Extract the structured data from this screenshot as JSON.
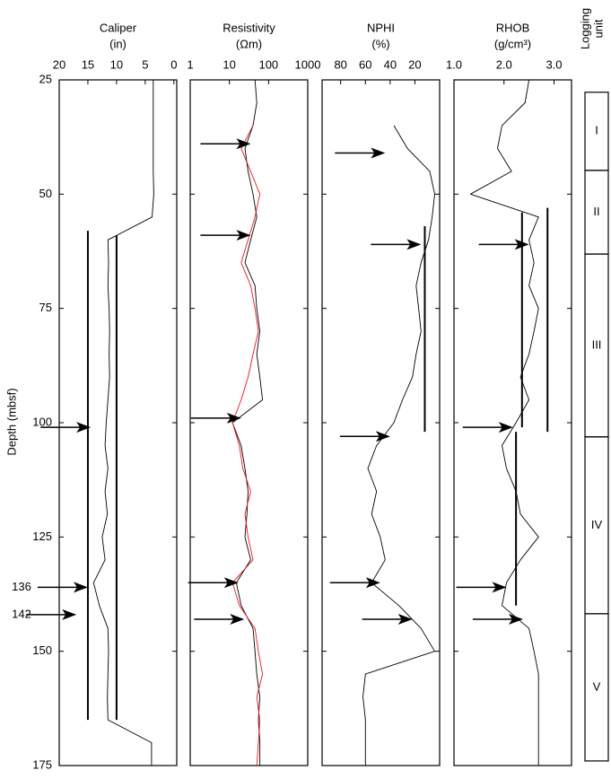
{
  "depth_axis": {
    "label": "Depth (mbsf)",
    "lim": [
      25,
      175
    ],
    "ticks": [
      25,
      50,
      75,
      100,
      125,
      150,
      175
    ]
  },
  "depths": [
    25,
    30,
    35,
    40,
    45,
    50,
    55,
    60,
    65,
    70,
    75,
    80,
    85,
    90,
    95,
    100,
    105,
    110,
    115,
    120,
    125,
    130,
    135,
    140,
    145,
    150,
    155,
    160,
    165,
    170,
    175
  ],
  "depth_labels": [
    136,
    142
  ],
  "units_title": [
    "Logging",
    "unit"
  ],
  "units": [
    {
      "label": "I",
      "top": 27.7,
      "bottom": 44.8
    },
    {
      "label": "II",
      "top": 44.8,
      "bottom": 63.1
    },
    {
      "label": "III",
      "top": 63.1,
      "bottom": 103.1
    },
    {
      "label": "IV",
      "top": 103.1,
      "bottom": 141.8
    },
    {
      "label": "V",
      "top": 141.8,
      "bottom": 174
    }
  ],
  "chart_data": [
    {
      "type": "line",
      "title": "Caliper",
      "unit": "(in)",
      "xlim": [
        20,
        -0.5
      ],
      "xticks": [
        20,
        15,
        10,
        5,
        0
      ],
      "series": [
        {
          "color": "#000000",
          "values": [
            3.6,
            3.6,
            3.6,
            3.6,
            3.6,
            3.5,
            3.8,
            11.5,
            11.4,
            11.5,
            11.3,
            11.2,
            11.3,
            11.2,
            11.5,
            11.8,
            12,
            11.5,
            12,
            11.6,
            12.5,
            12,
            14,
            13,
            11.5,
            11.4,
            11.5,
            11.6,
            11.5,
            3.9,
            3.9
          ]
        }
      ],
      "reference_lines": [
        {
          "value": 15,
          "from": 58,
          "to": 165
        },
        {
          "value": 10,
          "from": 59,
          "to": 165
        }
      ],
      "arrows": [
        {
          "depth": 101,
          "value": 14.5
        },
        {
          "depth": 136,
          "value": 15
        },
        {
          "depth": 142,
          "value": 17
        }
      ]
    },
    {
      "type": "line",
      "title": "Resistivity",
      "unit": "(Ωm)",
      "log": true,
      "xlim": [
        1,
        1000
      ],
      "xticks": [
        1,
        10,
        100,
        1000
      ],
      "series": [
        {
          "color": "#000000",
          "values": [
            45,
            50,
            40,
            25,
            30,
            40,
            50,
            35,
            25,
            45,
            50,
            60,
            50,
            60,
            70,
            12,
            20,
            25,
            30,
            28,
            25,
            35,
            15,
            20,
            40,
            45,
            50,
            60,
            55,
            60,
            60
          ]
        },
        {
          "color": "#e8141c",
          "values": [
            null,
            null,
            40,
            20,
            35,
            60,
            45,
            30,
            20,
            35,
            45,
            55,
            40,
            30,
            20,
            12,
            18,
            22,
            35,
            25,
            30,
            40,
            12,
            18,
            45,
            55,
            70,
            50,
            60,
            55,
            50
          ]
        }
      ],
      "reference_lines": [],
      "arrows": [
        {
          "depth": 39,
          "value": 35
        },
        {
          "depth": 59,
          "value": 35
        },
        {
          "depth": 99,
          "value": 20
        },
        {
          "depth": 135,
          "value": 17
        },
        {
          "depth": 143,
          "value": 24
        }
      ]
    },
    {
      "type": "line",
      "title": "NPHI",
      "unit": "(%)",
      "xlim": [
        95,
        0
      ],
      "xticks": [
        80,
        60,
        40,
        20
      ],
      "series": [
        {
          "color": "#000000",
          "values": [
            null,
            null,
            37,
            26,
            8,
            4,
            6,
            9,
            15,
            19,
            17,
            15,
            19,
            22,
            30,
            37,
            51,
            58,
            51,
            55,
            48,
            44,
            55,
            33,
            15,
            4,
            60,
            62,
            60,
            60,
            60
          ]
        }
      ],
      "reference_lines": [
        {
          "value": 12,
          "from": 57,
          "to": 102
        }
      ],
      "arrows": [
        {
          "depth": 41,
          "value": 44
        },
        {
          "depth": 61,
          "value": 15
        },
        {
          "depth": 103,
          "value": 40
        },
        {
          "depth": 135,
          "value": 48
        },
        {
          "depth": 143,
          "value": 22
        }
      ]
    },
    {
      "type": "line",
      "title": "RHOB",
      "unit": "(g/cm³)",
      "xlim": [
        1.0,
        3.35
      ],
      "xticks": [
        {
          "value": 1,
          "label": "1.0"
        },
        {
          "value": 2,
          "label": "2.0"
        },
        {
          "value": 3,
          "label": "3.0"
        }
      ],
      "series": [
        {
          "color": "#000000",
          "values": [
            2.5,
            2.42,
            1.96,
            1.87,
            2.15,
            1.33,
            2.69,
            2.5,
            2.6,
            2.5,
            2.69,
            2.6,
            2.5,
            2.33,
            2.5,
            2.24,
            1.96,
            2.05,
            2.24,
            2.33,
            2.69,
            2.33,
            2.05,
            1.96,
            2.5,
            2.6,
            2.69,
            2.69,
            2.69,
            2.69,
            2.69
          ]
        }
      ],
      "reference_lines": [
        {
          "value": 2.36,
          "from": 54,
          "to": 101
        },
        {
          "value": 2.87,
          "from": 53,
          "to": 102
        },
        {
          "value": 2.24,
          "from": 102,
          "to": 140
        }
      ],
      "arrows": [
        {
          "depth": 61,
          "value": 2.5
        },
        {
          "depth": 101,
          "value": 2.18
        },
        {
          "depth": 136,
          "value": 2.05
        },
        {
          "depth": 143,
          "value": 2.38
        }
      ]
    }
  ]
}
